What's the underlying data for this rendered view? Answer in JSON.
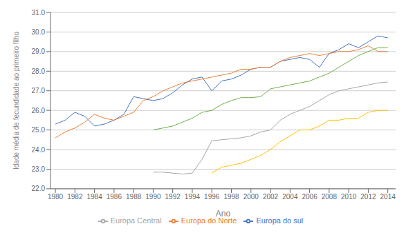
{
  "chart_data": {
    "type": "line",
    "xlabel": "Ano",
    "ylabel": "Idade média de fecundidade ao primeiro filho",
    "xlim": [
      1979.5,
      2014.8
    ],
    "xticks": [
      1980,
      1982,
      1984,
      1986,
      1988,
      1990,
      1992,
      1994,
      1996,
      1998,
      2000,
      2002,
      2004,
      2006,
      2008,
      2010,
      2012,
      2014
    ],
    "ylim": [
      22.0,
      31.0
    ],
    "yticks": [
      {
        "value": 22,
        "label": "22.0"
      },
      {
        "value": 23,
        "label": "23.0"
      },
      {
        "value": 24,
        "label": "24.0"
      },
      {
        "value": 25,
        "label": "25.0"
      },
      {
        "value": 26,
        "label": "26.0"
      },
      {
        "value": 27,
        "label": "27.0"
      },
      {
        "value": 28,
        "label": "28.0"
      },
      {
        "value": 29,
        "label": "29.0"
      },
      {
        "value": 30,
        "label": "30.0"
      },
      {
        "value": 31,
        "label": "31.0"
      }
    ],
    "grid": true,
    "series": [
      {
        "name": "Europa do sul",
        "color": "#4472C4",
        "x": [
          1980,
          1981,
          1982,
          1983,
          1984,
          1985,
          1986,
          1987,
          1988,
          1989,
          1990,
          1991,
          1992,
          1993,
          1994,
          1995,
          1996,
          1997,
          1998,
          1999,
          2000,
          2001,
          2002,
          2003,
          2004,
          2005,
          2006,
          2007,
          2008,
          2009,
          2010,
          2011,
          2012,
          2013,
          2014
        ],
        "values": [
          25.3,
          25.5,
          25.9,
          25.7,
          25.2,
          25.3,
          25.5,
          25.8,
          26.7,
          26.6,
          26.5,
          26.6,
          26.9,
          27.3,
          27.6,
          27.7,
          27.0,
          27.5,
          27.6,
          27.8,
          28.1,
          28.2,
          28.2,
          28.5,
          28.6,
          28.7,
          28.6,
          28.2,
          28.9,
          29.1,
          29.4,
          29.2,
          29.5,
          29.8,
          29.7
        ]
      },
      {
        "name": "Europa do Norte",
        "color": "#ED7D31",
        "x": [
          1980,
          1981,
          1982,
          1983,
          1984,
          1985,
          1986,
          1987,
          1988,
          1989,
          1990,
          1991,
          1992,
          1993,
          1994,
          1995,
          1996,
          1997,
          1998,
          1999,
          2000,
          2001,
          2002,
          2003,
          2004,
          2005,
          2006,
          2007,
          2008,
          2009,
          2010,
          2011,
          2012,
          2013,
          2014
        ],
        "values": [
          24.6,
          24.9,
          25.1,
          25.4,
          25.8,
          25.6,
          25.5,
          25.7,
          25.9,
          26.5,
          26.7,
          27.0,
          27.2,
          27.4,
          27.5,
          27.6,
          27.7,
          27.8,
          27.9,
          28.1,
          28.1,
          28.2,
          28.2,
          28.5,
          28.7,
          28.8,
          28.9,
          28.8,
          28.9,
          29.0,
          29.0,
          29.1,
          29.3,
          29.0,
          29.0
        ]
      },
      {
        "color": "#70AD47",
        "x": [
          1990,
          1991,
          1992,
          1993,
          1994,
          1995,
          1996,
          1997,
          1998,
          1999,
          2000,
          2001,
          2002,
          2003,
          2004,
          2005,
          2006,
          2007,
          2008,
          2009,
          2010,
          2011,
          2012,
          2013,
          2014
        ],
        "values": [
          25.0,
          25.1,
          25.2,
          25.4,
          25.6,
          25.9,
          26.0,
          26.3,
          26.5,
          26.65,
          26.65,
          26.7,
          27.1,
          27.2,
          27.3,
          27.4,
          27.5,
          27.7,
          27.9,
          28.2,
          28.5,
          28.8,
          29.0,
          29.2,
          29.2
        ]
      },
      {
        "name": "Europa Central",
        "color": "#A5A5A5",
        "x": [
          1990,
          1991,
          1992,
          1993,
          1994,
          1995,
          1996,
          1997,
          1998,
          1999,
          2000,
          2001,
          2002,
          2003,
          2004,
          2005,
          2006,
          2007,
          2008,
          2009,
          2010,
          2011,
          2012,
          2013,
          2014
        ],
        "values": [
          22.85,
          22.85,
          22.8,
          22.75,
          22.8,
          23.5,
          24.45,
          24.5,
          24.55,
          24.6,
          24.7,
          24.9,
          25.0,
          25.5,
          25.8,
          26.0,
          26.2,
          26.5,
          26.8,
          27.0,
          27.1,
          27.2,
          27.3,
          27.4,
          27.45
        ]
      },
      {
        "color": "#FFC000",
        "x": [
          1996,
          1997,
          1998,
          1999,
          2000,
          2001,
          2002,
          2003,
          2004,
          2005,
          2006,
          2007,
          2008,
          2009,
          2010,
          2011,
          2012,
          2013,
          2014
        ],
        "values": [
          22.8,
          23.1,
          23.2,
          23.3,
          23.5,
          23.7,
          24.0,
          24.4,
          24.7,
          25.0,
          25.0,
          25.2,
          25.5,
          25.5,
          25.6,
          25.6,
          25.9,
          26.0,
          26.0
        ]
      }
    ]
  }
}
